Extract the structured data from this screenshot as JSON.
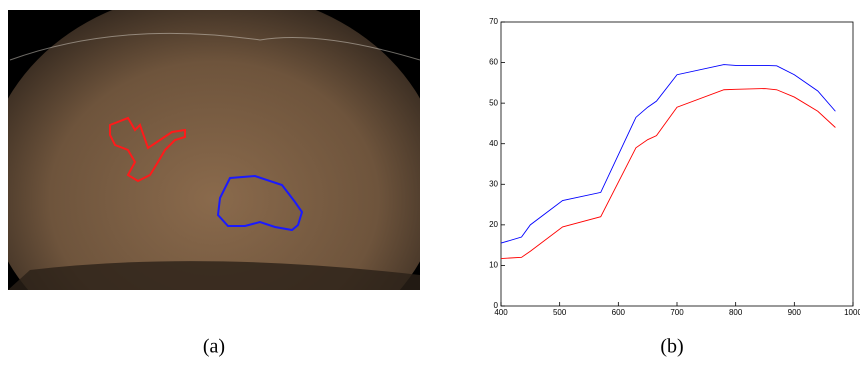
{
  "chart_data": {
    "type": "line",
    "x": [
      400,
      435,
      450,
      505,
      570,
      630,
      650,
      665,
      700,
      780,
      800,
      850,
      870,
      900,
      940,
      970
    ],
    "series": [
      {
        "color": "#0000ff",
        "values": [
          15.5,
          17,
          20,
          26,
          28,
          46.5,
          49,
          50.5,
          57,
          59.5,
          59.3,
          59.3,
          59.2,
          57,
          53,
          48
        ]
      },
      {
        "color": "#ff0000",
        "values": [
          11.7,
          12,
          13.5,
          19.5,
          22,
          39,
          41,
          42,
          49,
          53.3,
          53.4,
          53.6,
          53.3,
          51.5,
          48,
          44
        ]
      }
    ],
    "xlim": [
      400,
      1000
    ],
    "xticks": [
      400,
      500,
      600,
      700,
      800,
      900,
      1000
    ],
    "ylim": [
      0,
      70
    ],
    "yticks": [
      0,
      10,
      20,
      30,
      40,
      50,
      60,
      70
    ]
  },
  "captions": [
    "(a)",
    "(b)"
  ]
}
